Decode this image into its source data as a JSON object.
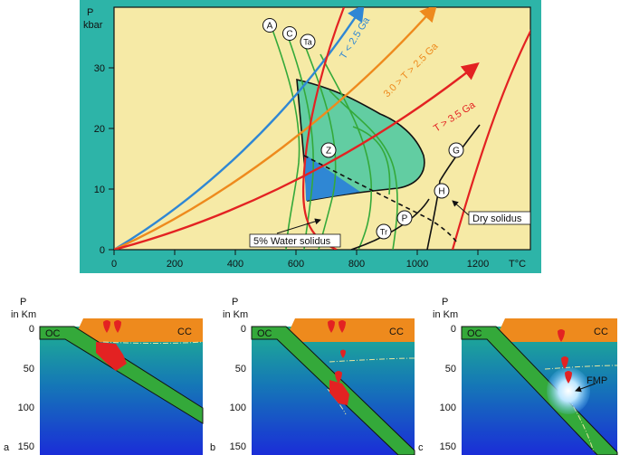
{
  "pt_diagram": {
    "y_label_1": "P",
    "y_label_2": "kbar",
    "x_label": "T°C",
    "y_ticks": [
      "0",
      "10",
      "20",
      "30"
    ],
    "x_ticks": [
      "0",
      "200",
      "400",
      "600",
      "800",
      "1000",
      "1200"
    ],
    "curve_labels": {
      "A": "A",
      "C": "C",
      "Ta": "Ta",
      "Z": "Z",
      "G": "G",
      "H": "H",
      "P": "P",
      "Tr": "Tr"
    },
    "geotherms": {
      "blue": "T < 2.5 Ga",
      "orange": "3.0 > T > 2.5 Ga",
      "red": "T > 3.5 Ga"
    },
    "wet_solidus": "5% Water solidus",
    "dry_solidus": "Dry solidus",
    "colors": {
      "panel_bg": "#2db4a8",
      "plot_bg": "#f6eaa6",
      "blue": "#2f87d4",
      "orange": "#ee8a1d",
      "red": "#e32222",
      "green": "#34a93a",
      "melt_field": "#62cda2"
    }
  },
  "sections": [
    {
      "letter": "a",
      "oc": "OC",
      "cc": "CC"
    },
    {
      "letter": "b",
      "oc": "OC",
      "cc": "CC"
    },
    {
      "letter": "c",
      "oc": "OC",
      "cc": "CC",
      "fmp": "FMP"
    }
  ],
  "section_axis": {
    "title_1": "P",
    "title_2": "in Km",
    "ticks": [
      "0",
      "50",
      "100",
      "150"
    ]
  }
}
